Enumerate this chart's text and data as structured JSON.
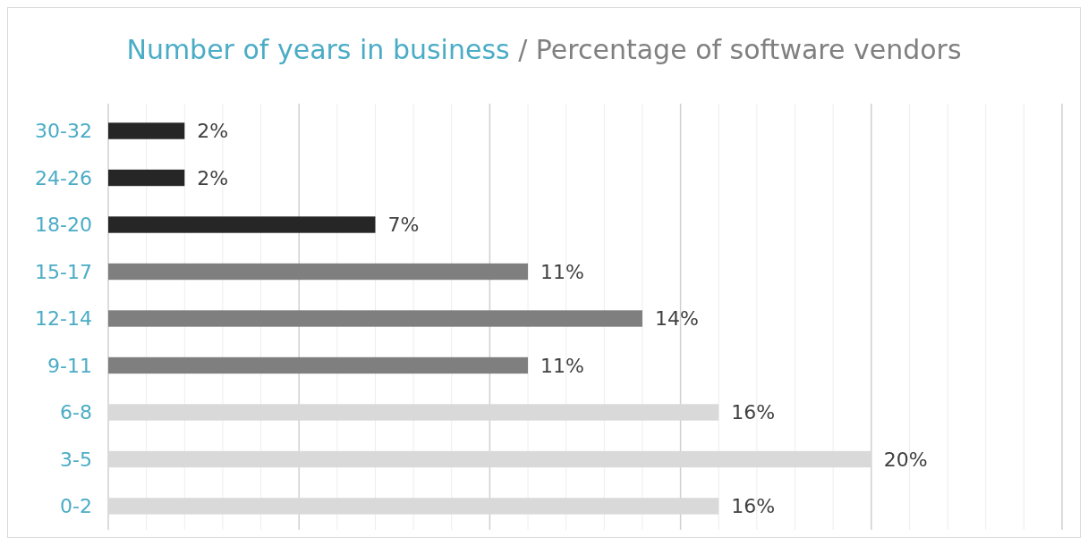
{
  "chart_data": {
    "type": "bar",
    "orientation": "horizontal",
    "title": "Number of years in business",
    "subtitle": "/ Percentage of software vendors",
    "categories": [
      "30-32",
      "24-26",
      "18-20",
      "15-17",
      "12-14",
      "9-11",
      "6-8",
      "3-5",
      "0-2"
    ],
    "values": [
      2,
      2,
      7,
      11,
      14,
      11,
      16,
      20,
      16
    ],
    "colors": [
      "#262626",
      "#262626",
      "#262626",
      "#7f7f7f",
      "#7f7f7f",
      "#7f7f7f",
      "#d9d9d9",
      "#d9d9d9",
      "#d9d9d9"
    ],
    "value_labels": [
      "2%",
      "2%",
      "7%",
      "11%",
      "14%",
      "11%",
      "16%",
      "20%",
      "16%"
    ],
    "xlim": [
      0,
      25
    ],
    "xticks": [
      {
        "value": 0,
        "label": null
      },
      {
        "value": 1,
        "label": null
      },
      {
        "value": 2,
        "label": null
      },
      {
        "value": 3,
        "label": null
      },
      {
        "value": 4,
        "label": null
      },
      {
        "value": 5,
        "label": null
      },
      {
        "value": 6,
        "label": null
      },
      {
        "value": 7,
        "label": null
      },
      {
        "value": 8,
        "label": null
      },
      {
        "value": 9,
        "label": null
      },
      {
        "value": 10,
        "label": null
      },
      {
        "value": 11,
        "label": null
      },
      {
        "value": 12,
        "label": null
      },
      {
        "value": 13,
        "label": null
      },
      {
        "value": 14,
        "label": null
      },
      {
        "value": 15,
        "label": null
      },
      {
        "value": 16,
        "label": null
      },
      {
        "value": 17,
        "label": null
      },
      {
        "value": 18,
        "label": null
      },
      {
        "value": 19,
        "label": null
      },
      {
        "value": 20,
        "label": null
      },
      {
        "value": 21,
        "label": null
      },
      {
        "value": 22,
        "label": null
      },
      {
        "value": 23,
        "label": null
      },
      {
        "value": 24,
        "label": null
      },
      {
        "value": 25,
        "label": null
      }
    ],
    "grid": "x",
    "tick_labels": "y"
  }
}
